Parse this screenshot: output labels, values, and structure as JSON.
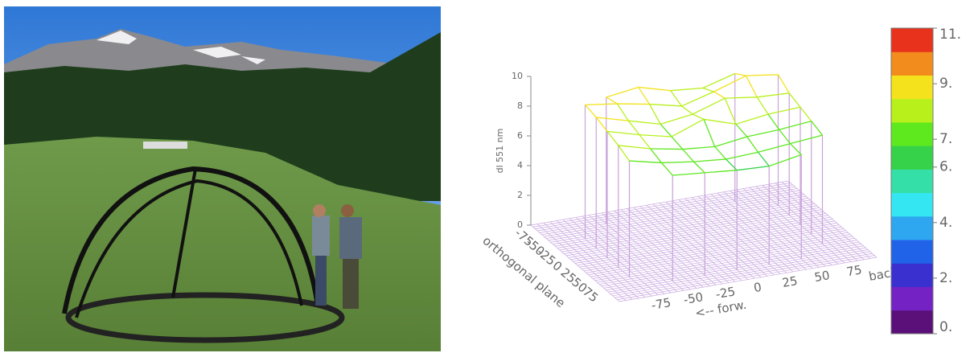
{
  "chart_data": {
    "type": "surface3d",
    "zlabel": "dl 551 nm",
    "xlabel": "<-- forw.",
    "xlabel2": "backw",
    "ylabel": "orthogonal plane",
    "x": [
      -75,
      -50,
      -25,
      0,
      25,
      50,
      75
    ],
    "y": [
      -75,
      -50,
      -25,
      0,
      25,
      50,
      75
    ],
    "z": [
      [
        null,
        8.5,
        8.8,
        8.2,
        8.0,
        8.6,
        null
      ],
      [
        9.0,
        8.7,
        8.3,
        7.8,
        8.4,
        9.1,
        8.8
      ],
      [
        8.8,
        8.2,
        7.6,
        7.9,
        8.6,
        8.3,
        8.2
      ],
      [
        8.5,
        7.9,
        7.4,
        8.2,
        7.5,
        7.8,
        7.9
      ],
      [
        8.2,
        7.6,
        7.2,
        7.0,
        7.3,
        7.4,
        7.6
      ],
      [
        7.8,
        7.3,
        7.0,
        6.8,
        6.9,
        7.1,
        7.3
      ],
      [
        null,
        7.1,
        6.9,
        6.7,
        6.6,
        7.0,
        null
      ]
    ],
    "xlim": [
      -100,
      100
    ],
    "ylim": [
      -100,
      100
    ],
    "zlim": [
      0,
      10
    ],
    "xticks": [
      -75,
      -50,
      -25,
      0,
      25,
      50,
      75
    ],
    "yticks": [
      -75,
      -50,
      -25,
      0,
      25,
      50,
      75
    ],
    "zticks": [
      0,
      2,
      4,
      6,
      8,
      10
    ],
    "curtain_color": "#c9a2d9",
    "floor_color": "#c7a6e0",
    "colorbar": {
      "lim": [
        0,
        11
      ],
      "colors": [
        "#5a1078",
        "#7422c4",
        "#3a30d0",
        "#2062e8",
        "#2ea6f0",
        "#34e6f2",
        "#34e0a8",
        "#36d24a",
        "#5ee81e",
        "#b8f01c",
        "#f4e21c",
        "#f28c1c",
        "#e8321c"
      ],
      "ticks": [
        {
          "value": 0,
          "label": "0."
        },
        {
          "value": 2,
          "label": "2."
        },
        {
          "value": 4,
          "label": "4."
        },
        {
          "value": 6,
          "label": "6."
        },
        {
          "value": 7,
          "label": "7."
        },
        {
          "value": 9,
          "label": "9."
        },
        {
          "value": 11,
          "label": "11."
        }
      ]
    }
  }
}
